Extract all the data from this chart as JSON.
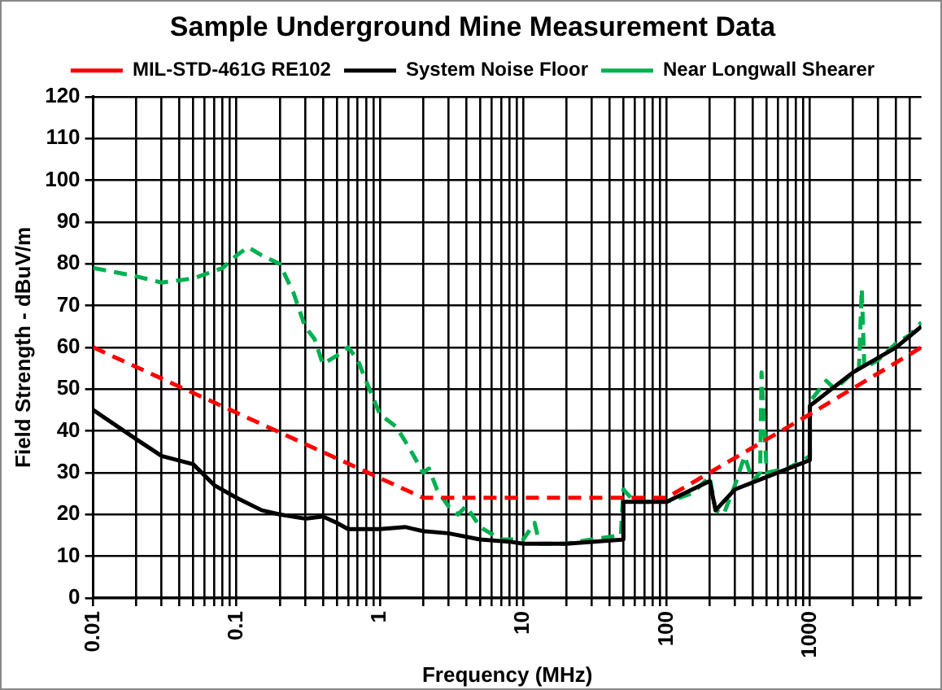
{
  "chart_data": {
    "type": "line",
    "title": "Sample Underground Mine Measurement Data",
    "xlabel": "Frequency (MHz)",
    "ylabel": "Field Strength - dBuV/m",
    "log": "x",
    "grid": true,
    "legend": "top",
    "marker": "none",
    "xlim": [
      0.01,
      6000
    ],
    "ylim": [
      0,
      120
    ],
    "yticks": [
      0,
      10,
      20,
      30,
      40,
      50,
      60,
      70,
      80,
      90,
      100,
      110,
      120
    ],
    "xticks": [
      0.01,
      {
        "value": 0.02,
        "label": null
      },
      {
        "value": 0.03,
        "label": null
      },
      {
        "value": 0.04,
        "label": null
      },
      {
        "value": 0.05,
        "label": null
      },
      {
        "value": 0.06,
        "label": null
      },
      {
        "value": 0.07,
        "label": null
      },
      {
        "value": 0.08,
        "label": null
      },
      {
        "value": 0.09,
        "label": null
      },
      0.1,
      {
        "value": 0.2,
        "label": null
      },
      {
        "value": 0.3,
        "label": null
      },
      {
        "value": 0.4,
        "label": null
      },
      {
        "value": 0.5,
        "label": null
      },
      {
        "value": 0.6,
        "label": null
      },
      {
        "value": 0.7,
        "label": null
      },
      {
        "value": 0.8,
        "label": null
      },
      {
        "value": 0.9,
        "label": null
      },
      1,
      {
        "value": 2,
        "label": null
      },
      {
        "value": 3,
        "label": null
      },
      {
        "value": 4,
        "label": null
      },
      {
        "value": 5,
        "label": null
      },
      {
        "value": 6,
        "label": null
      },
      {
        "value": 7,
        "label": null
      },
      {
        "value": 8,
        "label": null
      },
      {
        "value": 9,
        "label": null
      },
      10,
      {
        "value": 20,
        "label": null
      },
      {
        "value": 30,
        "label": null
      },
      {
        "value": 40,
        "label": null
      },
      {
        "value": 50,
        "label": null
      },
      {
        "value": 60,
        "label": null
      },
      {
        "value": 70,
        "label": null
      },
      {
        "value": 80,
        "label": null
      },
      {
        "value": 90,
        "label": null
      },
      100,
      {
        "value": 200,
        "label": null
      },
      {
        "value": 300,
        "label": null
      },
      {
        "value": 400,
        "label": null
      },
      {
        "value": 500,
        "label": null
      },
      {
        "value": 600,
        "label": null
      },
      {
        "value": 700,
        "label": null
      },
      {
        "value": 800,
        "label": null
      },
      {
        "value": 900,
        "label": null
      },
      1000,
      {
        "value": 2000,
        "label": null
      },
      {
        "value": 3000,
        "label": null
      },
      {
        "value": 4000,
        "label": null
      },
      {
        "value": 5000,
        "label": null
      }
    ],
    "series": [
      {
        "name": "MIL-STD-461G RE102",
        "color": "#ff0000",
        "line_style": "dashed",
        "x": [
          0.01,
          2,
          100,
          1000,
          6000
        ],
        "values": [
          60,
          24,
          24,
          44,
          60
        ]
      },
      {
        "name": "System Noise Floor",
        "color": "#000000",
        "line_style": "solid",
        "x": [
          0.01,
          0.02,
          0.03,
          0.05,
          0.07,
          0.1,
          0.15,
          0.2,
          0.3,
          0.4,
          0.5,
          0.6,
          1,
          1.5,
          2,
          3,
          5,
          8,
          10,
          20,
          50,
          50,
          100,
          200,
          220,
          300,
          500,
          1000,
          1000,
          2000,
          4000,
          6000
        ],
        "values": [
          45,
          38,
          34,
          32,
          27,
          24,
          21,
          20,
          19,
          19.5,
          18,
          16.5,
          16.5,
          17,
          16,
          15.5,
          14,
          13.5,
          13,
          13,
          14,
          23,
          23,
          28,
          21,
          26,
          29,
          33,
          46,
          54,
          60,
          65
        ]
      },
      {
        "name": "Near Longwall Shearer",
        "color": "#00b050",
        "line_style": "dashed",
        "x": [
          0.01,
          0.02,
          0.03,
          0.05,
          0.08,
          0.1,
          0.12,
          0.15,
          0.2,
          0.25,
          0.3,
          0.35,
          0.4,
          0.5,
          0.6,
          0.7,
          0.8,
          1,
          1.3,
          1.6,
          2,
          2.2,
          2.5,
          3,
          3.5,
          4,
          5,
          7,
          10,
          12,
          13,
          20,
          30,
          48,
          50,
          60,
          100,
          150,
          200,
          220,
          250,
          300,
          350,
          400,
          450,
          460,
          500,
          700,
          900,
          1000,
          1000,
          1300,
          1500,
          2000,
          2200,
          2300,
          2400,
          3000,
          4000,
          5000,
          6000
        ],
        "values": [
          79,
          77,
          75.5,
          76.5,
          79,
          82,
          84,
          82,
          80,
          73,
          65,
          62,
          56,
          58,
          60,
          57,
          52,
          44,
          41,
          36,
          30,
          31,
          26,
          22,
          20,
          22,
          17,
          14,
          14,
          18,
          13,
          13,
          14,
          15,
          26,
          23,
          23,
          25,
          29,
          21,
          20,
          27,
          34,
          28,
          30,
          54,
          30,
          31,
          33,
          34,
          47,
          52,
          50,
          54,
          55,
          74,
          55,
          57,
          61,
          63,
          66
        ]
      }
    ]
  }
}
